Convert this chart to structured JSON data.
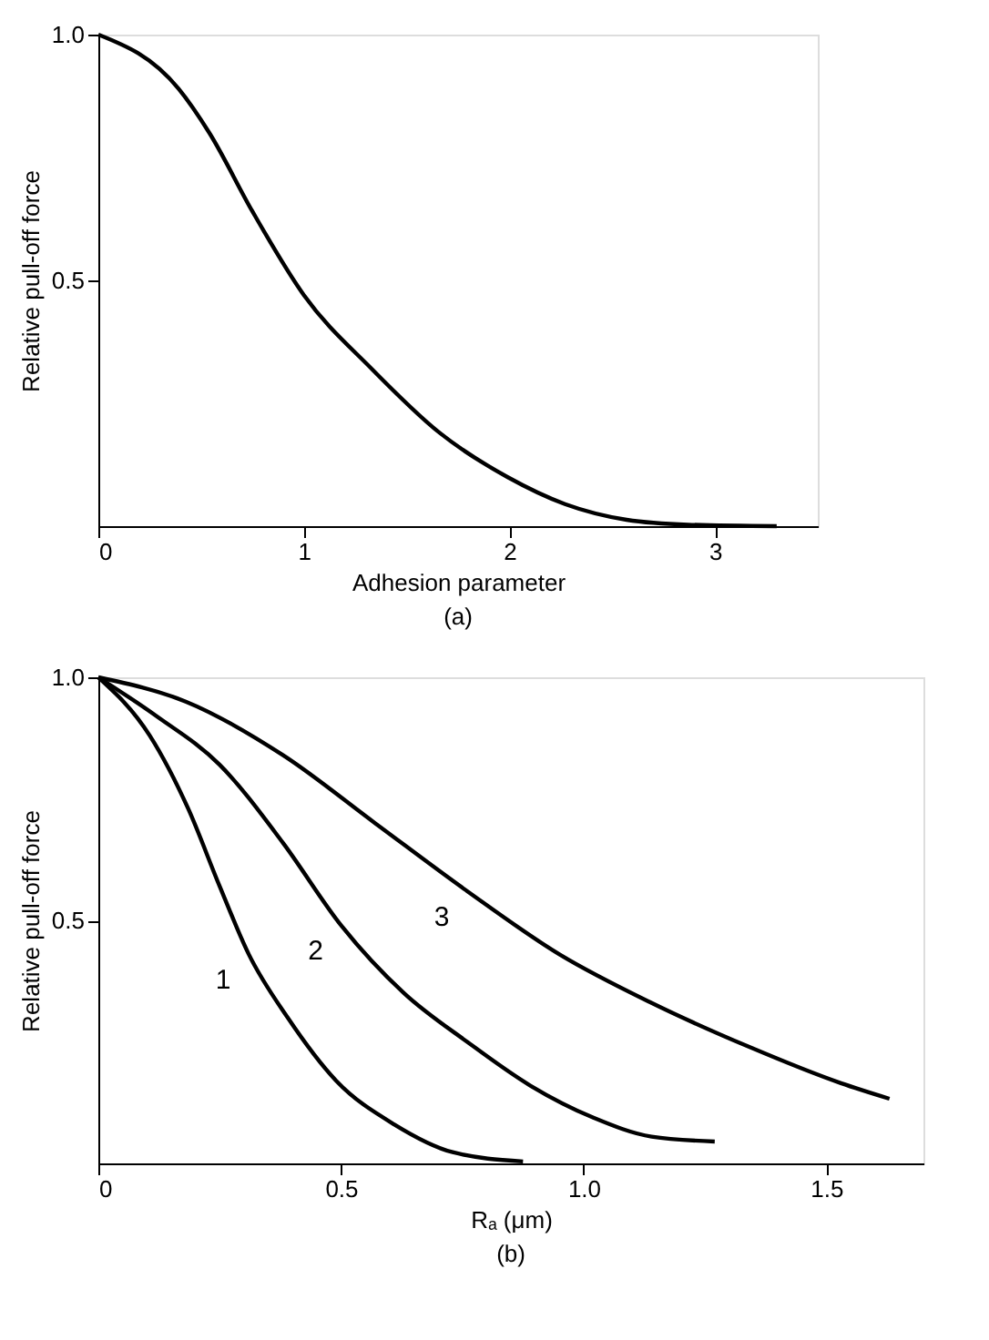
{
  "chart_data": [
    {
      "type": "line",
      "title": "(a)",
      "xlabel": "Adhesion parameter",
      "ylabel": "Relative pull-off force",
      "xlim": [
        0,
        3.5
      ],
      "ylim": [
        0,
        1.0
      ],
      "xticks": [
        0,
        1,
        2,
        3
      ],
      "yticks": [
        0.5,
        {
          "value": 1.0,
          "label": "1.0"
        }
      ],
      "grid": false,
      "marker": "none",
      "line_style": "solid",
      "series": [
        {
          "color": "#000000",
          "x": [
            0,
            0.39,
            0.54,
            0.75,
            1.0,
            1.33,
            1.66,
            1.99,
            2.27,
            2.57,
            2.87,
            3.3
          ],
          "values": [
            1.0,
            0.89,
            0.8,
            0.64,
            0.47,
            0.32,
            0.19,
            0.1,
            0.045,
            0.013,
            0.003,
            0
          ]
        }
      ]
    },
    {
      "type": "line",
      "title": "(b)",
      "xlabel": "Rₐ (μm)",
      "ylabel": "Relative pull-off force",
      "xlim": [
        0,
        1.7
      ],
      "ylim": [
        0,
        1.0
      ],
      "xticks": [
        {
          "value": 0,
          "label": "0"
        },
        0.5,
        {
          "value": 1.0,
          "label": "1.0"
        },
        1.5
      ],
      "yticks": [
        0.5,
        {
          "value": 1.0,
          "label": "1.0"
        }
      ],
      "grid": false,
      "marker": "none",
      "line_style": "solid",
      "series": [
        {
          "name": "1",
          "color": "#000000",
          "x": [
            0,
            0.106,
            0.185,
            0.25,
            0.31,
            0.39,
            0.49,
            0.61,
            0.73,
            0.875
          ],
          "values": [
            1.0,
            0.88,
            0.73,
            0.57,
            0.43,
            0.3,
            0.17,
            0.08,
            0.023,
            0.004
          ]
        },
        {
          "name": "2",
          "color": "#000000",
          "x": [
            0,
            0.12,
            0.25,
            0.38,
            0.5,
            0.63,
            0.76,
            0.89,
            1.02,
            1.14,
            1.27
          ],
          "values": [
            1.0,
            0.92,
            0.82,
            0.66,
            0.49,
            0.35,
            0.25,
            0.16,
            0.094,
            0.055,
            0.045
          ]
        },
        {
          "name": "3",
          "color": "#000000",
          "x": [
            0,
            0.18,
            0.38,
            0.57,
            0.76,
            0.95,
            1.14,
            1.34,
            1.53,
            1.63
          ],
          "values": [
            1.0,
            0.95,
            0.84,
            0.7,
            0.56,
            0.43,
            0.33,
            0.24,
            0.165,
            0.133
          ]
        }
      ]
    }
  ]
}
